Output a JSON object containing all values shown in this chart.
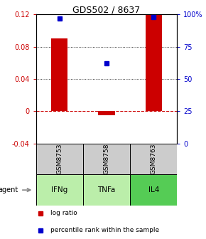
{
  "title": "GDS502 / 8637",
  "categories": [
    "IFNg",
    "TNFa",
    "IL4"
  ],
  "sample_ids": [
    "GSM8753",
    "GSM8758",
    "GSM8763"
  ],
  "log_ratios": [
    0.09,
    -0.005,
    0.119
  ],
  "percentile_ranks": [
    0.97,
    0.62,
    0.98
  ],
  "bar_color": "#cc0000",
  "dot_color": "#0000cc",
  "left_ylim": [
    -0.04,
    0.12
  ],
  "right_ylim": [
    0,
    1.0
  ],
  "left_yticks": [
    -0.04,
    0,
    0.04,
    0.08,
    0.12
  ],
  "right_yticks": [
    0,
    0.25,
    0.5,
    0.75,
    1.0
  ],
  "right_yticklabels": [
    "0",
    "25",
    "50",
    "75",
    "100%"
  ],
  "left_yticklabels": [
    "-0.04",
    "0",
    "0.04",
    "0.08",
    "0.12"
  ],
  "dotted_yticks": [
    0.04,
    0.08
  ],
  "zero_line_color": "#cc0000",
  "agent_label": "agent",
  "cell_colors_gray": "#cccccc",
  "cell_colors_green": [
    "#bbeeaa",
    "#bbeeaa",
    "#55cc55"
  ],
  "legend_log_label": "log ratio",
  "legend_pct_label": "percentile rank within the sample",
  "bar_width": 0.35
}
